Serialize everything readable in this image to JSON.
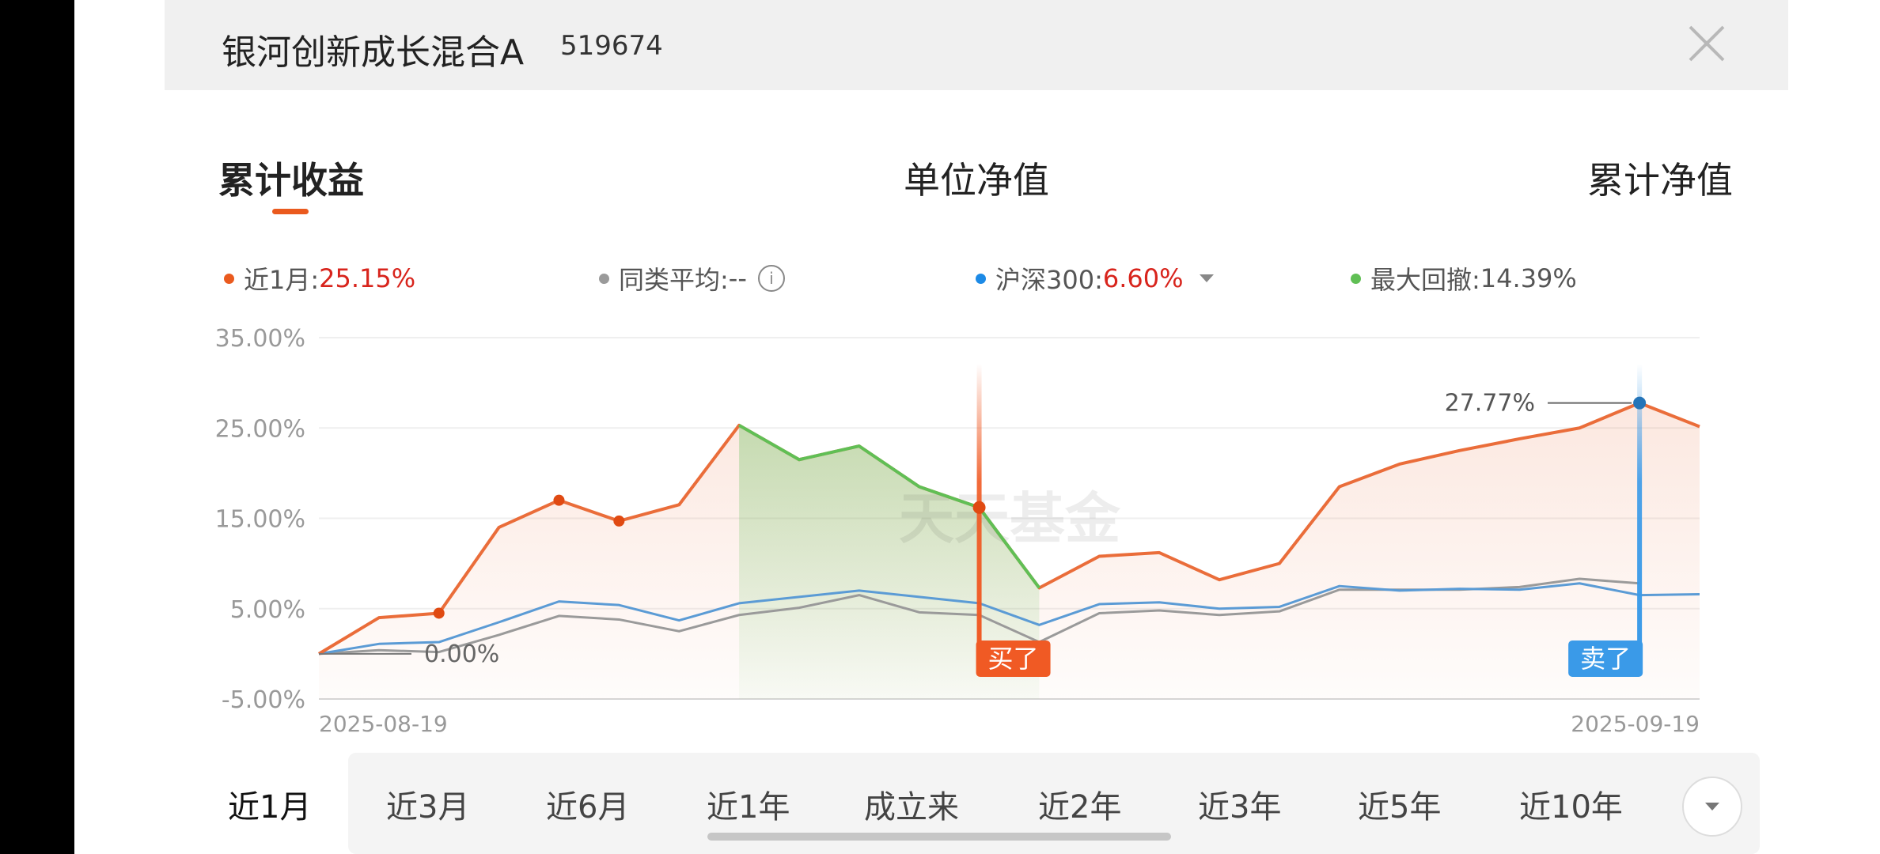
{
  "header": {
    "title": "银河创新成长混合A",
    "code": "519674"
  },
  "tabs": [
    {
      "label": "累计收益",
      "active": true
    },
    {
      "label": "单位净值",
      "active": false
    },
    {
      "label": "累计净值",
      "active": false
    }
  ],
  "legend": {
    "fund": {
      "label": "近1月:",
      "value": "25.15%"
    },
    "average": {
      "label": "同类平均:",
      "value": "--",
      "icon": "info-icon"
    },
    "benchmark": {
      "label": "沪深300:",
      "value": "6.60%",
      "icon": "caret-down-icon"
    },
    "drawdown": {
      "label": "最大回撤:",
      "value": "14.39%"
    }
  },
  "colors": {
    "fund": "#ea6d3a",
    "average": "#9a9a9a",
    "benchmark": "#5b9bd5",
    "drawdown": "#60bf55",
    "accent": "#ea5a1e",
    "buy": "#f05a24",
    "sell": "#3a9ae8",
    "up": "#d8241c"
  },
  "chart_data": {
    "type": "line",
    "ylim": [
      -5,
      35
    ],
    "yticks": [
      "35.00%",
      "25.00%",
      "15.00%",
      "5.00%",
      "-5.00%"
    ],
    "x_start_label": "2025-08-19",
    "x_end_label": "2025-09-19",
    "series": [
      {
        "key": "fund",
        "values": [
          0,
          4,
          4.5,
          14,
          17,
          14.7,
          16.5,
          25.3,
          21.5,
          23,
          18.5,
          16.2,
          7.3,
          10.8,
          11.2,
          8.2,
          10,
          18.5,
          21,
          22.5,
          23.8,
          25,
          27.77,
          25.15
        ]
      },
      {
        "key": "average",
        "values": [
          0,
          0.4,
          0.2,
          2.1,
          4.2,
          3.8,
          2.5,
          4.3,
          5.1,
          6.5,
          4.6,
          4.3,
          1.3,
          4.5,
          4.8,
          4.3,
          4.7,
          7.1,
          7.1,
          7.1,
          7.4,
          8.3,
          7.8
        ]
      },
      {
        "key": "benchmark",
        "values": [
          0,
          1.1,
          1.3,
          3.5,
          5.8,
          5.4,
          3.7,
          5.6,
          6.3,
          7.0,
          6.3,
          5.6,
          3.2,
          5.5,
          5.7,
          5.0,
          5.2,
          7.5,
          7.0,
          7.2,
          7.1,
          7.8,
          6.5,
          6.6
        ]
      }
    ],
    "drawdown_range": [
      7,
      12
    ],
    "annotations": {
      "start_label": "0.00%",
      "peak_label": "27.77%",
      "buy_label": "买了",
      "sell_label": "卖了",
      "buy_index": 11,
      "sell_index": 22
    },
    "watermark": "天天基金"
  },
  "range_tabs": [
    "近1月",
    "近3月",
    "近6月",
    "近1年",
    "成立来",
    "近2年",
    "近3年",
    "近5年",
    "近10年"
  ]
}
